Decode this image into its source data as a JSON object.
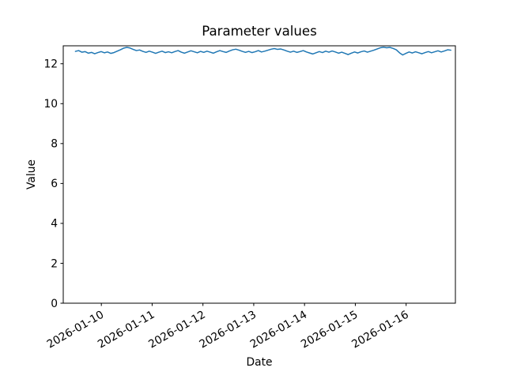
{
  "chart_data": {
    "type": "line",
    "title": "Parameter values",
    "xlabel": "Date",
    "ylabel": "Value",
    "grid": false,
    "legend": "none",
    "line_color": "#1f77b4",
    "axis_color": "#000000",
    "background_color": "#ffffff",
    "ylim": [
      0,
      12.9
    ],
    "y_ticks": [
      0,
      2,
      4,
      6,
      8,
      10,
      12
    ],
    "xlim_days": [
      -0.75,
      6.97
    ],
    "x_ticks": [
      {
        "day": 0,
        "label": "2026-01-10"
      },
      {
        "day": 1,
        "label": "2026-01-11"
      },
      {
        "day": 2,
        "label": "2026-01-12"
      },
      {
        "day": 3,
        "label": "2026-01-13"
      },
      {
        "day": 4,
        "label": "2026-01-14"
      },
      {
        "day": 5,
        "label": "2026-01-15"
      },
      {
        "day": 6,
        "label": "2026-01-16"
      }
    ],
    "x_tick_rotation_deg": 30,
    "series": [
      {
        "name": "parameter-values",
        "color": "#1f77b4",
        "x_start_day": -0.51,
        "x_end_day": 6.88,
        "values": [
          12.62,
          12.66,
          12.58,
          12.61,
          12.53,
          12.57,
          12.5,
          12.56,
          12.61,
          12.55,
          12.59,
          12.52,
          12.56,
          12.63,
          12.7,
          12.78,
          12.82,
          12.79,
          12.72,
          12.66,
          12.69,
          12.62,
          12.57,
          12.63,
          12.58,
          12.52,
          12.58,
          12.63,
          12.56,
          12.6,
          12.55,
          12.61,
          12.66,
          12.58,
          12.53,
          12.59,
          12.65,
          12.6,
          12.55,
          12.62,
          12.57,
          12.63,
          12.58,
          12.53,
          12.6,
          12.66,
          12.61,
          12.57,
          12.64,
          12.7,
          12.73,
          12.68,
          12.62,
          12.57,
          12.62,
          12.56,
          12.6,
          12.66,
          12.59,
          12.63,
          12.68,
          12.73,
          12.76,
          12.72,
          12.74,
          12.69,
          12.63,
          12.58,
          12.63,
          12.57,
          12.61,
          12.66,
          12.59,
          12.54,
          12.49,
          12.55,
          12.61,
          12.56,
          12.63,
          12.58,
          12.64,
          12.59,
          12.53,
          12.58,
          12.52,
          12.46,
          12.53,
          12.59,
          12.54,
          12.6,
          12.64,
          12.58,
          12.63,
          12.68,
          12.74,
          12.8,
          12.83,
          12.8,
          12.82,
          12.77,
          12.7,
          12.55,
          12.44,
          12.52,
          12.59,
          12.54,
          12.6,
          12.55,
          12.5,
          12.56,
          12.61,
          12.55,
          12.6,
          12.65,
          12.59,
          12.64,
          12.7,
          12.68
        ]
      }
    ]
  }
}
